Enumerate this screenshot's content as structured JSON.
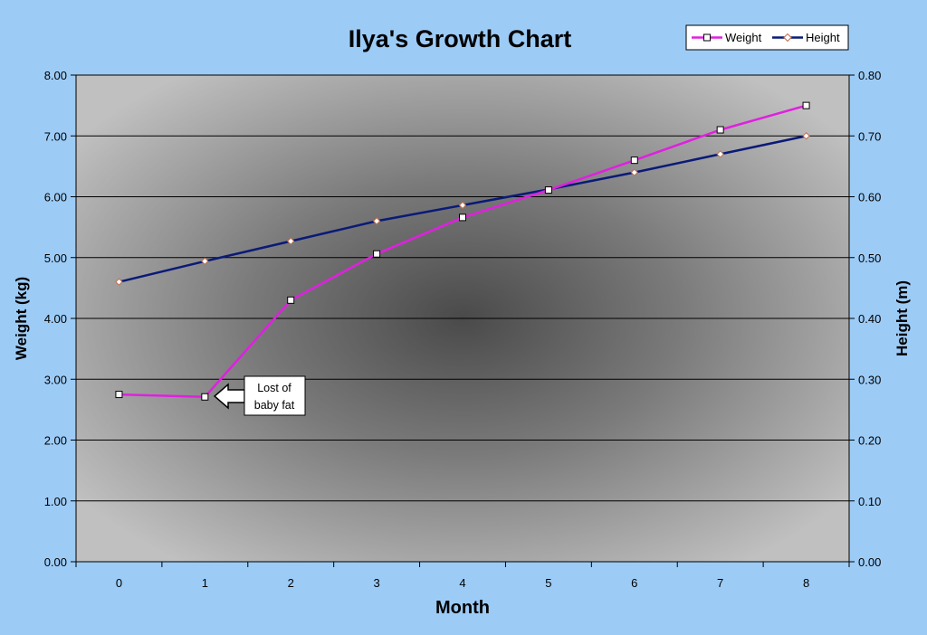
{
  "chart_data": {
    "type": "line",
    "title": "Ilya's Growth Chart",
    "xlabel": "Month",
    "ylabel": "Weight (kg)",
    "y2label": "Height (m)",
    "categories": [
      "0",
      "1",
      "2",
      "3",
      "4",
      "5",
      "6",
      "7",
      "8"
    ],
    "ylim": [
      0,
      8
    ],
    "y2lim": [
      0,
      0.8
    ],
    "y_ticks": [
      "0.00",
      "1.00",
      "2.00",
      "3.00",
      "4.00",
      "5.00",
      "6.00",
      "7.00",
      "8.00"
    ],
    "y2_ticks": [
      "0.00",
      "0.10",
      "0.20",
      "0.30",
      "0.40",
      "0.50",
      "0.60",
      "0.70",
      "0.80"
    ],
    "grid": true,
    "legend_position": "top-right",
    "series": [
      {
        "name": "Weight",
        "axis": "left",
        "color": "#e020e0",
        "marker": "square",
        "values": [
          2.75,
          2.71,
          4.3,
          5.06,
          5.66,
          6.11,
          6.6,
          7.1,
          7.5
        ]
      },
      {
        "name": "Height",
        "axis": "right",
        "color": "#0a1a78",
        "marker": "diamond",
        "values": [
          0.46,
          0.494,
          0.527,
          0.56,
          0.586,
          0.612,
          0.64,
          0.67,
          0.7
        ]
      }
    ],
    "annotations": [
      {
        "text_lines": [
          "Lost of",
          "baby fat"
        ],
        "series": "Weight",
        "category": "1"
      }
    ]
  }
}
